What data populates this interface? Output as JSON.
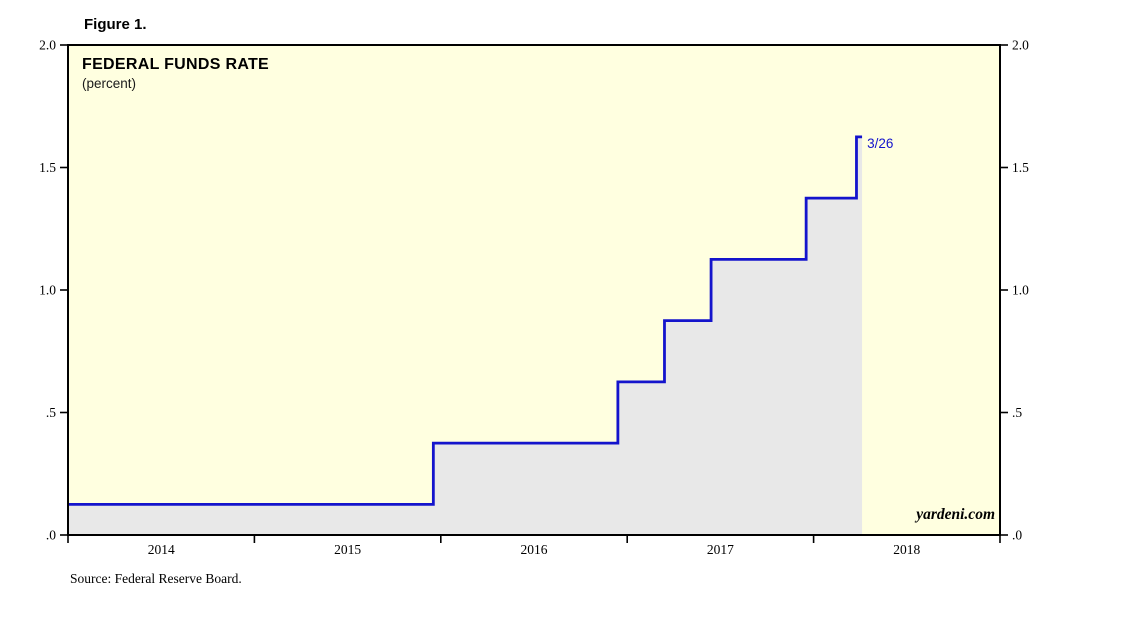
{
  "figure": {
    "label": "Figure 1.",
    "source": "Source: Federal Reserve Board."
  },
  "chart_data": {
    "type": "area",
    "title": "FEDERAL FUNDS RATE",
    "subtitle": "(percent)",
    "watermark": "yardeni.com",
    "annotation": {
      "text": "3/26",
      "x": 2018.26,
      "y": 1.625
    },
    "x_axis": {
      "domain": [
        2014,
        2019
      ],
      "ticks": [
        2014,
        2015,
        2016,
        2017,
        2018,
        2019
      ],
      "labels": [
        {
          "x": 2014.5,
          "text": "2014"
        },
        {
          "x": 2015.5,
          "text": "2015"
        },
        {
          "x": 2016.5,
          "text": "2016"
        },
        {
          "x": 2017.5,
          "text": "2017"
        },
        {
          "x": 2018.5,
          "text": "2018"
        }
      ]
    },
    "y_axis": {
      "domain": [
        0,
        2
      ],
      "ticks": [
        {
          "v": 0,
          "label": ".0"
        },
        {
          "v": 0.5,
          "label": ".5"
        },
        {
          "v": 1.0,
          "label": "1.0"
        },
        {
          "v": 1.5,
          "label": "1.5"
        },
        {
          "v": 2.0,
          "label": "2.0"
        }
      ]
    },
    "series": [
      {
        "name": "Federal Funds Rate (percent)",
        "type": "step-area",
        "points": [
          {
            "x": 2014.0,
            "y": 0.125
          },
          {
            "x": 2015.96,
            "y": 0.125
          },
          {
            "x": 2015.96,
            "y": 0.375
          },
          {
            "x": 2016.95,
            "y": 0.375
          },
          {
            "x": 2016.95,
            "y": 0.625
          },
          {
            "x": 2017.2,
            "y": 0.625
          },
          {
            "x": 2017.2,
            "y": 0.875
          },
          {
            "x": 2017.45,
            "y": 0.875
          },
          {
            "x": 2017.45,
            "y": 1.125
          },
          {
            "x": 2017.96,
            "y": 1.125
          },
          {
            "x": 2017.96,
            "y": 1.375
          },
          {
            "x": 2018.23,
            "y": 1.375
          },
          {
            "x": 2018.23,
            "y": 1.625
          },
          {
            "x": 2018.26,
            "y": 1.625
          }
        ]
      }
    ],
    "colors": {
      "line": "#1414CC",
      "fill": "#E8E8E8",
      "plot_background": "#FFFFE0",
      "annotation": "#1414CC",
      "axis": "#000000"
    }
  }
}
